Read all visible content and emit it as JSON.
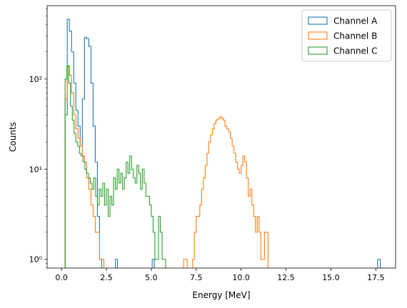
{
  "chart_data": {
    "type": "histogram",
    "xlabel": "Energy [MeV]",
    "ylabel": "Counts",
    "xlim": [
      -0.8,
      18.6
    ],
    "ylim": [
      0.8,
      650
    ],
    "yscale": "log",
    "xticks": [
      0.0,
      2.5,
      5.0,
      7.5,
      10.0,
      12.5,
      15.0,
      17.5
    ],
    "xtick_labels": [
      "0.0",
      "2.5",
      "5.0",
      "7.5",
      "10.0",
      "12.5",
      "15.0",
      "17.5"
    ],
    "yticks": [
      1,
      10,
      100
    ],
    "ytick_labels": [
      "10⁰",
      "10¹",
      "10²"
    ],
    "legend": {
      "placement": "top-right",
      "entries": [
        "Channel A",
        "Channel B",
        "Channel C"
      ]
    },
    "series": [
      {
        "name": "Channel A",
        "color": "#1f77b4",
        "edges": [
          0.2,
          0.32,
          0.44,
          0.56,
          0.68,
          0.8,
          0.92,
          1.04,
          1.16,
          1.28,
          1.4,
          1.52,
          1.64,
          1.76,
          1.88,
          2.0,
          2.12,
          2.24
        ],
        "counts": [
          40,
          460,
          340,
          200,
          90,
          45,
          30,
          18,
          60,
          290,
          280,
          230,
          90,
          30,
          12,
          3,
          1
        ],
        "extra": [
          {
            "edges": [
              3.0,
              3.12
            ],
            "counts": [
              1
            ]
          },
          {
            "edges": [
              5.05,
              5.17
            ],
            "counts": [
              1
            ]
          },
          {
            "edges": [
              17.6,
              17.75
            ],
            "counts": [
              1
            ]
          }
        ]
      },
      {
        "name": "Channel B",
        "color": "#ff7f0e",
        "edges": [
          0.2,
          0.32,
          0.44,
          0.56,
          0.68,
          0.8,
          0.92,
          1.04,
          1.16,
          1.28,
          1.4,
          1.52,
          1.64,
          1.76,
          1.88,
          2.0,
          2.12,
          2.24,
          2.36
        ],
        "counts": [
          60,
          140,
          110,
          70,
          40,
          28,
          22,
          18,
          14,
          12,
          8,
          6,
          4,
          3,
          2,
          2,
          1,
          1
        ],
        "extra": [
          {
            "edges": [
              6.8,
              6.9,
              7.0
            ],
            "counts": [
              1,
              1
            ]
          },
          {
            "edges": [
              7.3,
              7.4,
              7.5,
              7.6,
              7.7,
              7.8,
              7.9,
              8.0,
              8.1,
              8.2,
              8.3,
              8.4,
              8.5,
              8.6,
              8.7,
              8.8,
              8.9,
              9.0,
              9.1,
              9.2,
              9.3,
              9.4,
              9.5,
              9.6,
              9.7,
              9.8,
              9.9,
              10.0,
              10.1,
              10.2,
              10.3,
              10.4,
              10.5,
              10.6,
              10.7,
              10.8,
              10.9,
              11.0,
              11.1,
              11.2,
              11.3,
              11.4,
              11.5
            ],
            "counts": [
              1,
              2,
              3,
              3,
              4,
              6,
              8,
              11,
              15,
              20,
              24,
              28,
              32,
              35,
              36,
              38,
              37,
              35,
              30,
              28,
              26,
              22,
              18,
              15,
              12,
              10,
              9,
              11,
              14,
              12,
              8,
              5,
              6,
              4,
              3,
              2,
              3,
              2,
              1,
              1,
              2,
              2
            ]
          }
        ]
      },
      {
        "name": "Channel C",
        "color": "#2ca02c",
        "edges": [
          0.2,
          0.3,
          0.4,
          0.5,
          0.6,
          0.7,
          0.8,
          0.9,
          1.0,
          1.1,
          1.2,
          1.3,
          1.4,
          1.5,
          1.6,
          1.7,
          1.8,
          1.9,
          2.0,
          2.1,
          2.2,
          2.3,
          2.4,
          2.5,
          2.6,
          2.7,
          2.8,
          2.9,
          3.0,
          3.1,
          3.2,
          3.3,
          3.4,
          3.5,
          3.6,
          3.7,
          3.8,
          3.9,
          4.0,
          4.1,
          4.2,
          4.3,
          4.4,
          4.5,
          4.6,
          4.7,
          4.8,
          4.9,
          5.0,
          5.1,
          5.2,
          5.3,
          5.4,
          5.5,
          5.6,
          5.7,
          5.8
        ],
        "counts": [
          100,
          140,
          90,
          50,
          35,
          25,
          20,
          18,
          15,
          14,
          12,
          10,
          9,
          8,
          7,
          6,
          8,
          5,
          4,
          6,
          5,
          7,
          4,
          6,
          3,
          5,
          4,
          8,
          6,
          10,
          7,
          9,
          6,
          8,
          12,
          9,
          14,
          10,
          8,
          7,
          11,
          9,
          6,
          10,
          7,
          5,
          5,
          4,
          3,
          2,
          1,
          1,
          3,
          2,
          1,
          1
        ]
      }
    ]
  }
}
